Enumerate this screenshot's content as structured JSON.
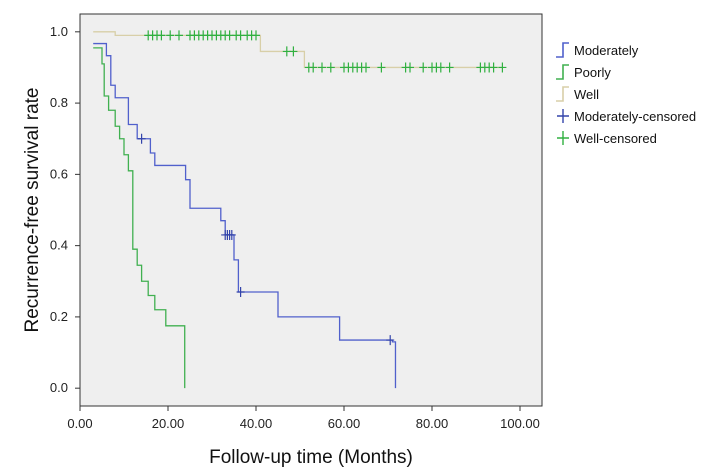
{
  "chart_data": {
    "type": "line",
    "subtype": "kaplan-meier",
    "xlabel": "Follow-up time (Months)",
    "ylabel": "Recurrence-free survival rate",
    "xlim": [
      0,
      105
    ],
    "ylim": [
      -0.05,
      1.05
    ],
    "x_ticks": [
      0,
      20,
      40,
      60,
      80,
      100
    ],
    "x_tick_labels": [
      "0.00",
      "20.00",
      "40.00",
      "60.00",
      "80.00",
      "100.00"
    ],
    "y_ticks": [
      0.0,
      0.2,
      0.4,
      0.6,
      0.8,
      1.0
    ],
    "y_tick_labels": [
      "0.0",
      "0.2",
      "0.4",
      "0.6",
      "0.8",
      "1.0"
    ],
    "grid": false,
    "plot_background": "#efefef",
    "legend_position": "right",
    "series": [
      {
        "name": "Moderately",
        "color": "#5060cc",
        "steps": [
          [
            3,
            0.967
          ],
          [
            6,
            0.933
          ],
          [
            7,
            0.85
          ],
          [
            8,
            0.815
          ],
          [
            11,
            0.74
          ],
          [
            13,
            0.7
          ],
          [
            16,
            0.66
          ],
          [
            17,
            0.625
          ],
          [
            24,
            0.585
          ],
          [
            25,
            0.505
          ],
          [
            32,
            0.47
          ],
          [
            33,
            0.43
          ],
          [
            35,
            0.36
          ],
          [
            36,
            0.27
          ],
          [
            45,
            0.2
          ],
          [
            59,
            0.135
          ],
          [
            71,
            0.13
          ],
          [
            71.7,
            0.0
          ]
        ],
        "end_x": 71.7,
        "censored": [
          14,
          33,
          33.5,
          34,
          34.5,
          36.5,
          70.5
        ]
      },
      {
        "name": "Poorly",
        "color": "#40b050",
        "steps": [
          [
            3,
            0.955
          ],
          [
            5,
            0.91
          ],
          [
            5.5,
            0.82
          ],
          [
            6.5,
            0.78
          ],
          [
            8,
            0.735
          ],
          [
            9,
            0.7
          ],
          [
            10,
            0.655
          ],
          [
            11,
            0.61
          ],
          [
            12,
            0.39
          ],
          [
            13,
            0.345
          ],
          [
            14,
            0.3
          ],
          [
            15.5,
            0.26
          ],
          [
            17,
            0.22
          ],
          [
            19.5,
            0.175
          ],
          [
            23.8,
            0.0
          ]
        ],
        "end_x": 23.8,
        "censored": []
      },
      {
        "name": "Well",
        "color": "#d8cfa8",
        "steps": [
          [
            3,
            1.0
          ],
          [
            8,
            0.99
          ],
          [
            41,
            0.945
          ],
          [
            51,
            0.9
          ]
        ],
        "end_x": 96,
        "censored": [
          15.5,
          16.5,
          17.5,
          18.5,
          20.5,
          22.5,
          25,
          26,
          27,
          28,
          29,
          30,
          31,
          32,
          33,
          34,
          35.5,
          36.5,
          38,
          39,
          40,
          47,
          48.5,
          52,
          53,
          55,
          57,
          60,
          61,
          62,
          63,
          64,
          65,
          68.5,
          74,
          75,
          78,
          80,
          81,
          82,
          84,
          91,
          92,
          93,
          94,
          96
        ]
      }
    ],
    "legend": [
      {
        "label": "Moderately",
        "kind": "step",
        "color": "#5060cc"
      },
      {
        "label": "Poorly",
        "kind": "step",
        "color": "#40b050"
      },
      {
        "label": "Well",
        "kind": "step",
        "color": "#d8cfa8"
      },
      {
        "label": "Moderately-censored",
        "kind": "plus",
        "color": "#3344aa"
      },
      {
        "label": "Well-censored",
        "kind": "plus",
        "color": "#30b040"
      }
    ]
  }
}
